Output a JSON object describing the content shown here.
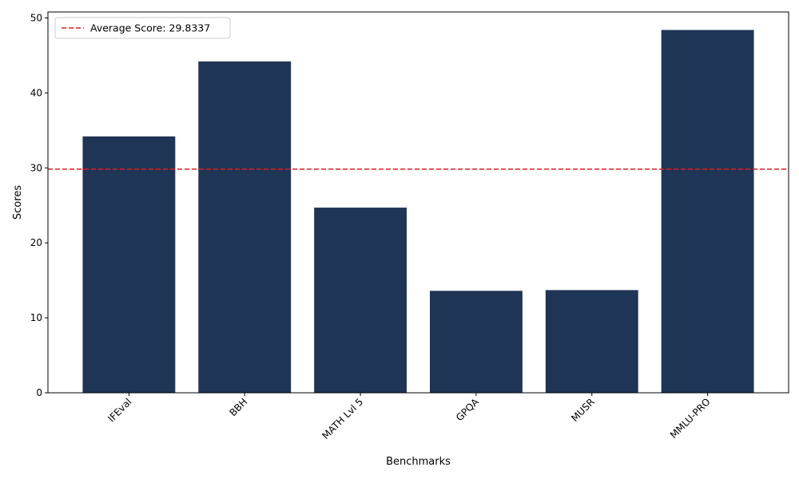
{
  "chart_data": {
    "type": "bar",
    "categories": [
      "IFEval",
      "BBH",
      "MATH Lvl 5",
      "GPQA",
      "MUSR",
      "MMLU-PRO"
    ],
    "values": [
      34.2,
      44.2,
      24.7,
      13.6,
      13.7,
      48.4
    ],
    "xlabel": "Benchmarks",
    "ylabel": "Scores",
    "ylim": [
      0,
      50.8
    ],
    "yticks": [
      0,
      10,
      20,
      30,
      40,
      50
    ],
    "bar_color": "#1f3556",
    "grid": false,
    "reference_line": {
      "value": 29.8337,
      "label": "Average Score: 29.8337",
      "color": "#e41a1c",
      "style": "dashed"
    },
    "legend": {
      "position": "top-left"
    }
  }
}
